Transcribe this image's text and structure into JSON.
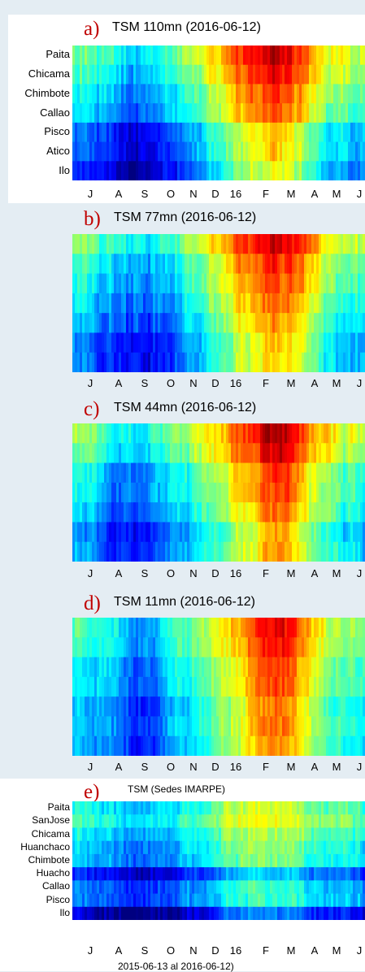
{
  "colors": {
    "background": "#e4edf3",
    "panel": "#ffffff",
    "letter": "#c00000"
  },
  "chart_data": [
    {
      "type": "heatmap",
      "letter": "a)",
      "title": "TSM 110mn (2016-06-12)",
      "rows": [
        "Paita",
        "Chicama",
        "Chimbote",
        "Callao",
        "Pisco",
        "Atico",
        "Ilo"
      ],
      "x_tick_labels": [
        "J",
        "A",
        "S",
        "O",
        "N",
        "D",
        "16",
        "F",
        "M",
        "A",
        "M",
        "J"
      ],
      "colormap": "jet"
    },
    {
      "type": "heatmap",
      "letter": "b)",
      "title": "TSM 77mn (2016-06-12)",
      "rows": [],
      "x_tick_labels": [
        "J",
        "A",
        "S",
        "O",
        "N",
        "D",
        "16",
        "F",
        "M",
        "A",
        "M",
        "J"
      ],
      "colormap": "jet"
    },
    {
      "type": "heatmap",
      "letter": "c)",
      "title": "TSM 44mn (2016-06-12)",
      "rows": [],
      "x_tick_labels": [
        "J",
        "A",
        "S",
        "O",
        "N",
        "D",
        "16",
        "F",
        "M",
        "A",
        "M",
        "J"
      ],
      "colormap": "jet"
    },
    {
      "type": "heatmap",
      "letter": "d)",
      "title": "TSM 11mn (2016-06-12)",
      "rows": [],
      "x_tick_labels": [
        "J",
        "A",
        "S",
        "O",
        "N",
        "D",
        "16",
        "F",
        "M",
        "A",
        "M",
        "J"
      ],
      "colormap": "jet"
    },
    {
      "type": "heatmap",
      "letter": "e)",
      "title": "TSM (Sedes IMARPE)",
      "rows": [
        "Paita",
        "SanJose",
        "Chicama",
        "Huanchaco",
        "Chimbote",
        "Huacho",
        "Callao",
        "Pisco",
        "Ilo"
      ],
      "x_tick_labels": [
        "J",
        "A",
        "S",
        "O",
        "N",
        "D",
        "16",
        "F",
        "M",
        "A",
        "M",
        "J"
      ],
      "footer": "2015-06-13 al 2016-06-12)",
      "colormap": "jet"
    }
  ]
}
